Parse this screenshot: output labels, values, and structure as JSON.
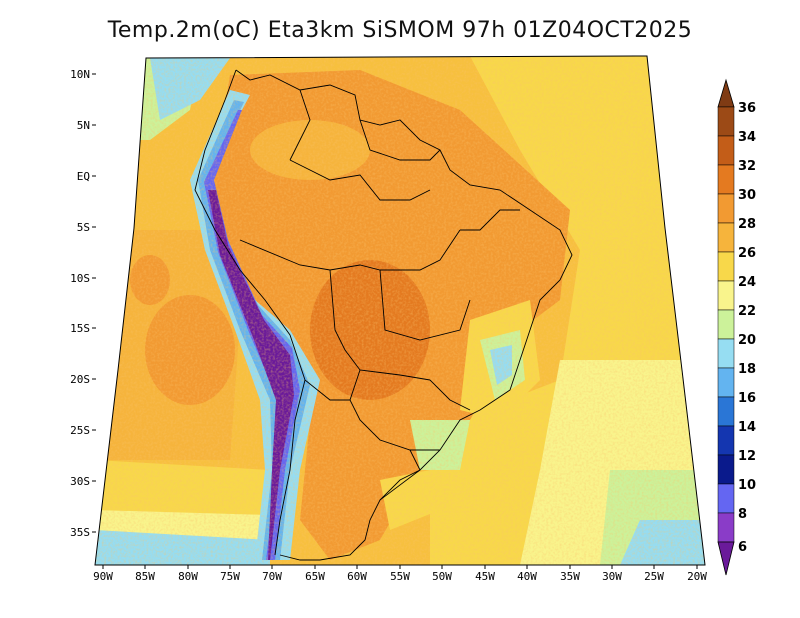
{
  "map": {
    "title": "Temp.2m(oC) Eta3km SiSMOM 97h 01Z04OCT2025",
    "lat_ticks": [
      "10N",
      "5N",
      "EQ",
      "5S",
      "10S",
      "15S",
      "20S",
      "25S",
      "30S",
      "35S"
    ],
    "lon_ticks": [
      "90W",
      "85W",
      "80W",
      "75W",
      "70W",
      "65W",
      "60W",
      "55W",
      "50W",
      "45W",
      "40W",
      "35W",
      "30W",
      "25W",
      "20W"
    ]
  },
  "colorbar": {
    "unit": "oC",
    "levels": [
      "36",
      "34",
      "32",
      "30",
      "28",
      "26",
      "24",
      "22",
      "20",
      "18",
      "16",
      "14",
      "12",
      "10",
      "8",
      "6"
    ],
    "colors": [
      "#7f3b14",
      "#9c4a16",
      "#c35d18",
      "#e47a20",
      "#f29a32",
      "#f6b43c",
      "#f8d84a",
      "#f9f48c",
      "#ccf29a",
      "#96ddf2",
      "#63b4f0",
      "#2a76d6",
      "#1436b0",
      "#0a1a8c",
      "#6466f2",
      "#8a3cc8",
      "#6a1a9a"
    ]
  }
}
